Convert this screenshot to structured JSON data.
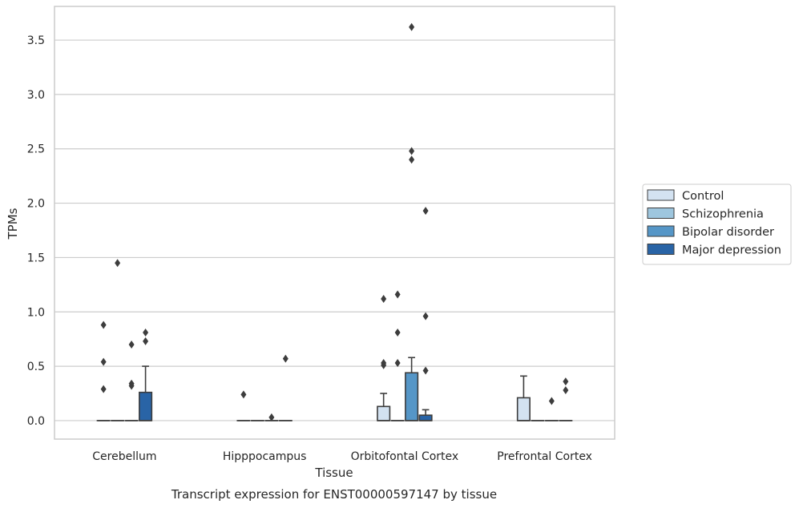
{
  "chart_data": {
    "type": "box",
    "title": "",
    "xlabel": "Tissue",
    "ylabel": "TPMs",
    "caption": "Transcript expression for ENST00000597147 by tissue",
    "ylim": [
      -0.17,
      3.81
    ],
    "yticks": [
      "0.0",
      "0.5",
      "1.0",
      "1.5",
      "2.0",
      "2.5",
      "3.0",
      "3.5"
    ],
    "grid": true,
    "legend_position": "right",
    "categories": [
      "Cerebellum",
      "Hipppocampus",
      "Orbitofontal Cortex",
      "Prefrontal Cortex"
    ],
    "series": [
      {
        "name": "Control",
        "color": "#d3e2f1",
        "boxes": [
          {
            "q1": 0,
            "median": 0,
            "q3": 0,
            "whisker_low": 0,
            "whisker_high": 0,
            "outliers": [
              0.88,
              0.54,
              0.29
            ]
          },
          {
            "q1": 0,
            "median": 0,
            "q3": 0,
            "whisker_low": 0,
            "whisker_high": 0,
            "outliers": [
              0.24
            ]
          },
          {
            "q1": 0,
            "median": 0,
            "q3": 0.13,
            "whisker_low": 0,
            "whisker_high": 0.25,
            "outliers": [
              1.12,
              0.53,
              0.51
            ]
          },
          {
            "q1": 0,
            "median": 0,
            "q3": 0.21,
            "whisker_low": 0,
            "whisker_high": 0.41,
            "outliers": []
          }
        ]
      },
      {
        "name": "Schizophrenia",
        "color": "#9ec6de",
        "boxes": [
          {
            "q1": 0,
            "median": 0,
            "q3": 0,
            "whisker_low": 0,
            "whisker_high": 0,
            "outliers": [
              1.45
            ]
          },
          {
            "q1": 0,
            "median": 0,
            "q3": 0,
            "whisker_low": 0,
            "whisker_high": 0,
            "outliers": []
          },
          {
            "q1": 0,
            "median": 0,
            "q3": 0,
            "whisker_low": 0,
            "whisker_high": 0,
            "outliers": [
              1.16,
              0.81,
              0.53
            ]
          },
          {
            "q1": 0,
            "median": 0,
            "q3": 0,
            "whisker_low": 0,
            "whisker_high": 0,
            "outliers": []
          }
        ]
      },
      {
        "name": "Bipolar disorder",
        "color": "#5596c7",
        "boxes": [
          {
            "q1": 0,
            "median": 0,
            "q3": 0,
            "whisker_low": 0,
            "whisker_high": 0,
            "outliers": [
              0.7,
              0.34,
              0.32
            ]
          },
          {
            "q1": 0,
            "median": 0,
            "q3": 0,
            "whisker_low": 0,
            "whisker_high": 0,
            "outliers": [
              0.03
            ]
          },
          {
            "q1": 0,
            "median": 0,
            "q3": 0.44,
            "whisker_low": 0,
            "whisker_high": 0.58,
            "outliers": [
              3.62,
              2.48,
              2.4
            ]
          },
          {
            "q1": 0,
            "median": 0,
            "q3": 0,
            "whisker_low": 0,
            "whisker_high": 0,
            "outliers": [
              0.18
            ]
          }
        ]
      },
      {
        "name": "Major depression",
        "color": "#2964a6",
        "boxes": [
          {
            "q1": 0,
            "median": 0,
            "q3": 0.26,
            "whisker_low": 0,
            "whisker_high": 0.5,
            "outliers": [
              0.81,
              0.73
            ]
          },
          {
            "q1": 0,
            "median": 0,
            "q3": 0,
            "whisker_low": 0,
            "whisker_high": 0,
            "outliers": [
              0.57
            ]
          },
          {
            "q1": 0,
            "median": 0,
            "q3": 0.05,
            "whisker_low": 0,
            "whisker_high": 0.1,
            "outliers": [
              1.93,
              0.96,
              0.46
            ]
          },
          {
            "q1": 0,
            "median": 0,
            "q3": 0,
            "whisker_low": 0,
            "whisker_high": 0,
            "outliers": [
              0.36,
              0.28
            ]
          }
        ]
      }
    ]
  }
}
